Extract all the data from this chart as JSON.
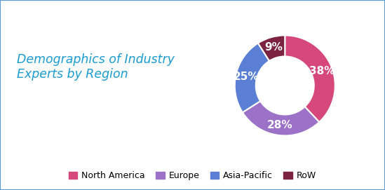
{
  "title": "Demographics of Industry\nExperts by Region",
  "title_color": "#1b9bd1",
  "title_fontsize": 12.5,
  "labels": [
    "North America",
    "Europe",
    "Asia-Pacific",
    "RoW"
  ],
  "values": [
    38,
    28,
    25,
    9
  ],
  "colors": [
    "#d6477a",
    "#9b72c8",
    "#5b7fd4",
    "#7b2340"
  ],
  "pct_labels": [
    "38%",
    "28%",
    "25%",
    "9%"
  ],
  "pct_color": "#ffffff",
  "pct_fontsize": 11,
  "donut_width": 0.42,
  "background_color": "#ffffff",
  "border_color": "#5b9bd5",
  "legend_fontsize": 9,
  "figsize": [
    5.49,
    2.71
  ],
  "dpi": 100
}
